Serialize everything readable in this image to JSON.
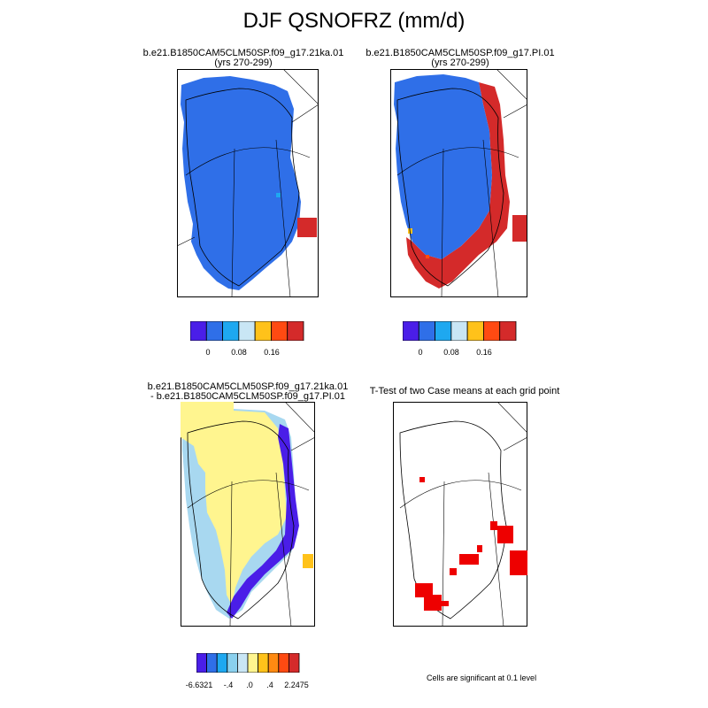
{
  "figure": {
    "title": "DJF QSNOFRZ (mm/d)",
    "note": "Cells are significant at 0.1 level"
  },
  "panels": [
    {
      "id": "case1",
      "title_line1": "b.e21.B1850CAM5CLM50SP.f09_g17.21ka.01",
      "title_line2": "(yrs 270-299)",
      "colorbar": {
        "colors": [
          "#4a1ee8",
          "#2f6fe8",
          "#1ea8f0",
          "#c9e6f5",
          "#ffc21a",
          "#ff4a12",
          "#d42a2a"
        ],
        "labels": [
          "0",
          "0.08",
          "0.16"
        ]
      }
    },
    {
      "id": "case2",
      "title_line1": "b.e21.B1850CAM5CLM50SP.f09_g17.PI.01",
      "title_line2": "(yrs 270-299)",
      "colorbar": {
        "colors": [
          "#4a1ee8",
          "#2f6fe8",
          "#1ea8f0",
          "#c9e6f5",
          "#ffc21a",
          "#ff4a12",
          "#d42a2a"
        ],
        "labels": [
          "0",
          "0.08",
          "0.16"
        ]
      }
    },
    {
      "id": "diff",
      "title_line1": "b.e21.B1850CAM5CLM50SP.f09_g17.21ka.01",
      "title_line2": "- b.e21.B1850CAM5CLM50SP.f09_g17.PI.01",
      "colorbar": {
        "colors": [
          "#4a1ee8",
          "#2f6fe8",
          "#1ea8f0",
          "#8ad0ee",
          "#c9e6f5",
          "#fff58f",
          "#ffc21a",
          "#ff8a12",
          "#ff4a12",
          "#d42a2a"
        ],
        "labels": [
          "-6.6321",
          "-.4",
          ".0",
          ".4",
          "2.2475"
        ]
      }
    },
    {
      "id": "ttest",
      "title_line1": "T-Test of two Case means at each grid point"
    }
  ],
  "palette": {
    "ice_blue": "#2f6fe8",
    "red": "#d42a2a",
    "yellow": "#fff58f",
    "light_blue": "#a8d8f0",
    "purple": "#4a1ee8",
    "sig_red": "#ee0000"
  }
}
